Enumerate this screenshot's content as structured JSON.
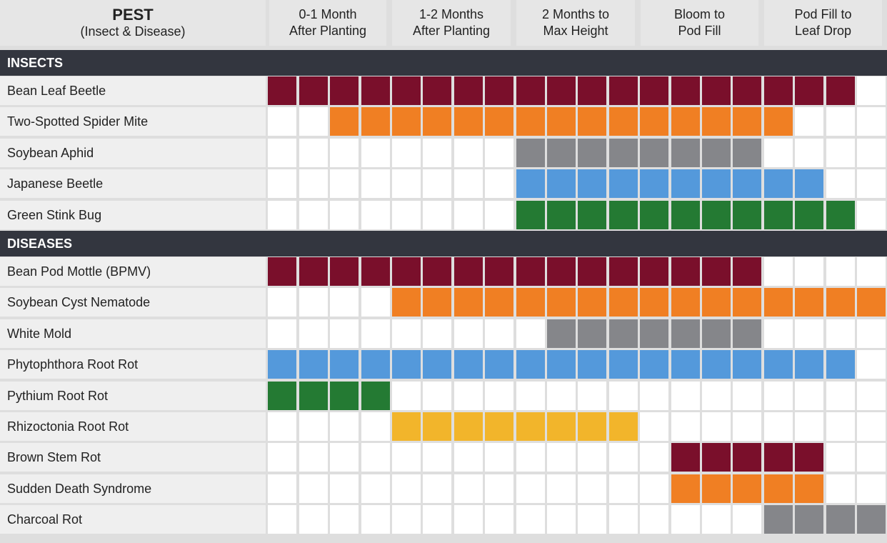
{
  "header": {
    "pest_title": "PEST",
    "pest_subtitle": "(Insect & Disease)",
    "stages": [
      {
        "line1": "0-1 Month",
        "line2": "After Planting"
      },
      {
        "line1": "1-2 Months",
        "line2": "After Planting"
      },
      {
        "line1": "2 Months to",
        "line2": "Max Height"
      },
      {
        "line1": "Bloom to",
        "line2": "Pod Fill"
      },
      {
        "line1": "Pod Fill to",
        "line2": "Leaf Drop"
      }
    ]
  },
  "colors": {
    "maroon": "#7a0f2b",
    "orange": "#f07f23",
    "gray": "#85868a",
    "blue": "#5499db",
    "green": "#247a33",
    "yellow": "#f2b52b",
    "empty": "#ffffff",
    "grid": "#dedede",
    "section_bar": "#33363f",
    "header_bg": "#e6e6e6"
  },
  "chart_data": {
    "type": "table",
    "columns_per_stage": 4,
    "total_columns": 20,
    "sections": [
      {
        "title": "INSECTS",
        "rows": [
          {
            "label": "Bean Leaf Beetle",
            "start": 1,
            "end": 19,
            "color": "maroon"
          },
          {
            "label": "Two-Spotted Spider Mite",
            "start": 3,
            "end": 17,
            "color": "orange"
          },
          {
            "label": "Soybean Aphid",
            "start": 9,
            "end": 16,
            "color": "gray"
          },
          {
            "label": "Japanese Beetle",
            "start": 9,
            "end": 18,
            "color": "blue"
          },
          {
            "label": "Green Stink Bug",
            "start": 9,
            "end": 19,
            "color": "green"
          }
        ]
      },
      {
        "title": "DISEASES",
        "rows": [
          {
            "label": "Bean Pod Mottle (BPMV)",
            "start": 1,
            "end": 16,
            "color": "maroon"
          },
          {
            "label": "Soybean Cyst Nematode",
            "start": 5,
            "end": 20,
            "color": "orange"
          },
          {
            "label": "White Mold",
            "start": 10,
            "end": 16,
            "color": "gray"
          },
          {
            "label": "Phytophthora Root Rot",
            "start": 1,
            "end": 19,
            "color": "blue"
          },
          {
            "label": "Pythium Root Rot",
            "start": 1,
            "end": 4,
            "color": "green"
          },
          {
            "label": "Rhizoctonia Root Rot",
            "start": 5,
            "end": 12,
            "color": "yellow"
          },
          {
            "label": "Brown Stem Rot",
            "start": 14,
            "end": 18,
            "color": "maroon"
          },
          {
            "label": "Sudden Death Syndrome",
            "start": 14,
            "end": 18,
            "color": "orange"
          },
          {
            "label": "Charcoal Rot",
            "start": 17,
            "end": 20,
            "color": "gray"
          }
        ]
      }
    ]
  }
}
